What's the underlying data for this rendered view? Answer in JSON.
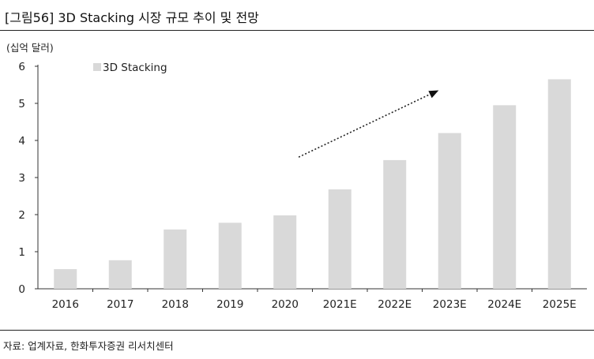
{
  "header": {
    "title": "[그림56] 3D Stacking 시장 규모 추이 및 전망"
  },
  "footer": {
    "source": "자료: 업계자료, 한화투자증권 리서치센터"
  },
  "chart_data": {
    "type": "bar",
    "unit_label": "(십억 달러)",
    "categories": [
      "2016",
      "2017",
      "2018",
      "2019",
      "2020",
      "2021E",
      "2022E",
      "2023E",
      "2024E",
      "2025E"
    ],
    "series": [
      {
        "name": "3D Stacking",
        "color": "#d9d9d9",
        "values": [
          0.53,
          0.77,
          1.6,
          1.78,
          1.98,
          2.68,
          3.47,
          4.2,
          4.95,
          5.65
        ]
      }
    ],
    "ylim": [
      0,
      6
    ],
    "yticks": [
      0,
      1,
      2,
      3,
      4,
      5,
      6
    ],
    "grid": false,
    "legend_position": "top-left",
    "annotation": "dotted arrow trend rising from 2021E to 2023E"
  }
}
